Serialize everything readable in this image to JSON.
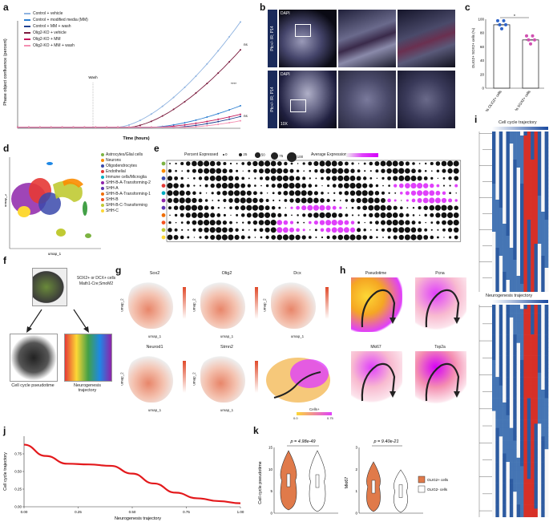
{
  "panels": {
    "a": "a",
    "b": "b",
    "c": "c",
    "d": "d",
    "e": "e",
    "f": "f",
    "g": "g",
    "h": "h",
    "i": "i",
    "j": "j",
    "k": "k"
  },
  "panel_a": {
    "ylabel": "Phase object confluence (percent)",
    "xlabel": "Time (hours)",
    "wash_label": "Wash",
    "ns1": "ns",
    "ns2": "ns",
    "sig": "****",
    "legend": [
      {
        "name": "Control + vehicle",
        "color": "#8fb3e0"
      },
      {
        "name": "Control + modified media (MM)",
        "color": "#2c7fd1"
      },
      {
        "name": "Control + MM + wash",
        "color": "#1f3f8f"
      },
      {
        "name": "Olig2-KO + vehicle",
        "color": "#7a1a3d"
      },
      {
        "name": "Olig2-KO + MM",
        "color": "#c2185b"
      },
      {
        "name": "Olig2-KO + MM + wash",
        "color": "#f48fb1"
      }
    ]
  },
  "panel_b": {
    "row1": "Ptc+/- IR; P14",
    "row2": "Ptc+/- IR; P14",
    "stain": "DAPI",
    "mag": "10X"
  },
  "panel_c": {
    "ylabel": "OLIG2+ SOX2+ cells (%)",
    "sig": "*",
    "categories": [
      "% OLIG2+ cells",
      "% SOX2+ cells"
    ]
  },
  "panel_d": {
    "xlabel": "umap_1",
    "ylabel": "umap_2",
    "clusters": [
      {
        "name": "Astrocytes/Glial cells",
        "color": "#7cb342"
      },
      {
        "name": "Neurons",
        "color": "#fb8c00"
      },
      {
        "name": "Oligodendrocytes",
        "color": "#3949ab"
      },
      {
        "name": "Endothelial",
        "color": "#e53935"
      },
      {
        "name": "Immune cells/Microglia",
        "color": "#00acc1"
      },
      {
        "name": "SHH-B-A-Transforming-2",
        "color": "#8e24aa"
      },
      {
        "name": "SHH-A",
        "color": "#5e35b1"
      },
      {
        "name": "SHH-B-A-Transforming-1",
        "color": "#ef6c00"
      },
      {
        "name": "SHH-B",
        "color": "#f4511e"
      },
      {
        "name": "SHH-B-C-Transforming",
        "color": "#c0ca33"
      },
      {
        "name": "SHH-C",
        "color": "#fdd835"
      }
    ]
  },
  "panel_e": {
    "pct_title": "Percent Expressed",
    "pct_values": [
      "0",
      "25",
      "50",
      "75",
      "100"
    ],
    "avg_title": "Average Expression"
  },
  "panel_f": {
    "text": "SOX2+ or DCX+ cells Math1-Cre;SmoM2",
    "left": "Cell cycle pseudotime",
    "right": "Neurogenesis trajectory"
  },
  "panel_g": {
    "genes": [
      "Sox2",
      "Olig2",
      "Dcx",
      "Neurod1",
      "Stmn2"
    ],
    "xlabel": "umap_1",
    "ylabel": "umap_2",
    "colorbar": "Cells+",
    "cb_min": "0.0",
    "cb_max": "0.75"
  },
  "panel_h": {
    "titles": [
      "Pseudotime",
      "Pcna",
      "Mki67",
      "Top2a"
    ]
  },
  "panel_i": {
    "top": "Cell cycle trajectory",
    "bottom": "Neurogenesis trajectory"
  },
  "chart_data": [
    {
      "type": "line",
      "title": "",
      "xlabel": "Neurogenesis trajectory",
      "ylabel": "Cell cycle trajectory",
      "x": [
        0.0,
        0.1,
        0.2,
        0.3,
        0.4,
        0.5,
        0.6,
        0.7,
        0.8,
        0.9,
        1.0
      ],
      "values": [
        0.88,
        0.72,
        0.61,
        0.6,
        0.58,
        0.47,
        0.33,
        0.2,
        0.12,
        0.08,
        0.05
      ],
      "xticks": [
        "0.00",
        "0.25",
        "0.50",
        "0.75",
        "1.00"
      ],
      "yticks": [
        "0.00",
        "0.25",
        "0.50",
        "0.75"
      ],
      "xlim": [
        0,
        1
      ],
      "ylim": [
        0,
        1
      ],
      "color": "#e3191c"
    },
    {
      "type": "bar",
      "title": "",
      "xlabel": "",
      "ylabel": "OLIG2+ SOX2+ cells (%)",
      "categories": [
        "% OLIG2+ cells",
        "% SOX2+ cells"
      ],
      "values": [
        92,
        70
      ],
      "yticks": [
        "0",
        "20",
        "40",
        "60",
        "80",
        "100"
      ],
      "ylim": [
        0,
        100
      ],
      "colors": [
        "#2e64c8",
        "#d050b0"
      ]
    }
  ],
  "panel_k": {
    "left_ylabel": "Cell cycle pseudotime",
    "left_p": "p = 4.98e-49",
    "right_ylabel": "Mki67",
    "right_p": "p = 9.40e-21",
    "legend": [
      "OLIG2+ cells",
      "OLIG2- cells"
    ],
    "colors": [
      "#e07a4a",
      "#ffffff"
    ],
    "left_yticks": [
      "0",
      "5",
      "10",
      "15"
    ],
    "right_yticks": [
      "0",
      "1",
      "2",
      "3"
    ]
  }
}
